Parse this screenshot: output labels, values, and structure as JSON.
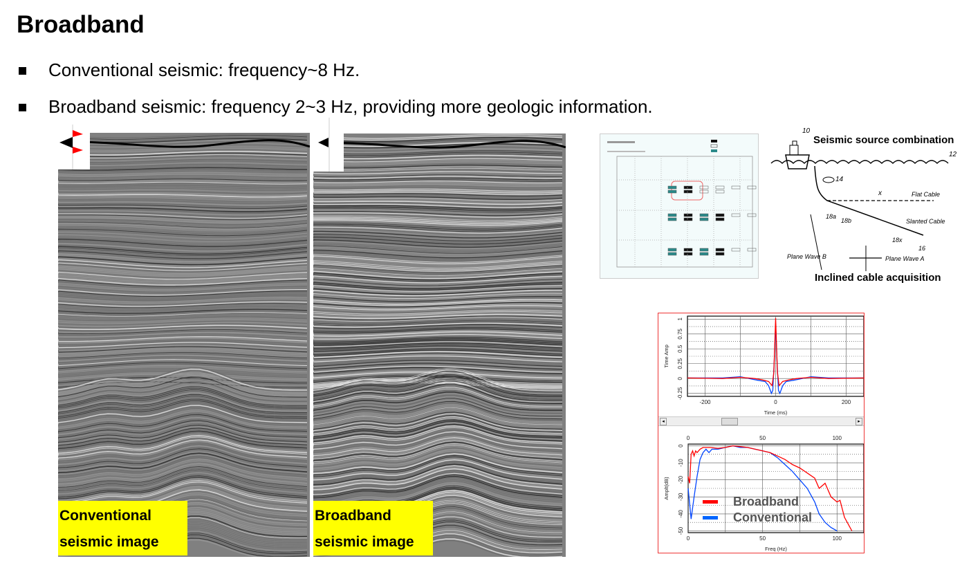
{
  "title": "Broadband",
  "bullets": [
    "Conventional seismic: frequency~8 Hz.",
    "Broadband seismic: frequency 2~3 Hz, providing more geologic information."
  ],
  "images": {
    "conventional_label_1": "Conventional",
    "conventional_label_2": "seismic image",
    "broadband_label_1": "Broadband",
    "broadband_label_2": "seismic image"
  },
  "diagram": {
    "source_caption": "Seismic source combination",
    "cable_caption": "Inclined cable acquisition",
    "labels": [
      "10",
      "12",
      "14",
      "x",
      "Flat Cable",
      "18a",
      "18b",
      "Slanted Cable",
      "18x",
      "16",
      "Plane Wave B",
      "Plane Wave A"
    ]
  },
  "colors": {
    "broadband": "#ff0000",
    "conventional": "#0044ff",
    "label_bg": "#ffff00"
  },
  "chart_data": [
    {
      "type": "line",
      "xlabel": "Time (ms)",
      "ylabel": "Time Amp",
      "xlim": [
        -250,
        250
      ],
      "ylim": [
        -0.3,
        1.05
      ],
      "xticks": [
        "-200",
        "0",
        "200"
      ],
      "yticks": [
        "1",
        "0.75",
        "0.5",
        "0.25",
        "0",
        "-0.25"
      ],
      "grid": true,
      "series": [
        {
          "color": "#ff0000",
          "points": [
            [
              -250,
              0.01
            ],
            [
              -150,
              0.0
            ],
            [
              -100,
              0.02
            ],
            [
              -60,
              0.0
            ],
            [
              -40,
              -0.02
            ],
            [
              -20,
              -0.05
            ],
            [
              -10,
              -0.12
            ],
            [
              -5,
              0.1
            ],
            [
              0,
              1.02
            ],
            [
              5,
              0.1
            ],
            [
              10,
              -0.12
            ],
            [
              20,
              -0.05
            ],
            [
              40,
              -0.02
            ],
            [
              60,
              0.0
            ],
            [
              100,
              0.02
            ],
            [
              150,
              0.0
            ],
            [
              250,
              0.01
            ]
          ]
        },
        {
          "color": "#0044ff",
          "points": [
            [
              -250,
              0.01
            ],
            [
              -150,
              0.01
            ],
            [
              -100,
              0.03
            ],
            [
              -50,
              -0.03
            ],
            [
              -30,
              -0.05
            ],
            [
              -20,
              -0.12
            ],
            [
              -12,
              -0.25
            ],
            [
              -8,
              -0.2
            ],
            [
              -4,
              0.3
            ],
            [
              0,
              0.92
            ],
            [
              4,
              0.3
            ],
            [
              8,
              -0.2
            ],
            [
              12,
              -0.25
            ],
            [
              20,
              -0.12
            ],
            [
              30,
              -0.05
            ],
            [
              50,
              -0.03
            ],
            [
              100,
              0.03
            ],
            [
              150,
              0.01
            ],
            [
              250,
              0.01
            ]
          ]
        }
      ]
    },
    {
      "type": "line",
      "xlabel": "Freq (Hz)",
      "ylabel": "Amplt(dB)",
      "xlim": [
        0,
        118
      ],
      "ylim": [
        -51,
        1
      ],
      "xticks": [
        "0",
        "50",
        "100"
      ],
      "yticks": [
        "0",
        "-10",
        "-20",
        "-30",
        "-40",
        "-50"
      ],
      "grid": true,
      "legend": "bottom-left",
      "series": [
        {
          "name": "Broadband",
          "color": "#ff0000",
          "points": [
            [
              0,
              -18
            ],
            [
              1,
              -22
            ],
            [
              2,
              -5
            ],
            [
              3,
              -3
            ],
            [
              4,
              -6
            ],
            [
              5,
              -3
            ],
            [
              6,
              -4
            ],
            [
              8,
              -2
            ],
            [
              10,
              -1
            ],
            [
              15,
              -1
            ],
            [
              20,
              -1.5
            ],
            [
              25,
              -1
            ],
            [
              30,
              0
            ],
            [
              35,
              -0.5
            ],
            [
              40,
              -1
            ],
            [
              45,
              -2
            ],
            [
              50,
              -3
            ],
            [
              55,
              -4
            ],
            [
              60,
              -6
            ],
            [
              65,
              -8
            ],
            [
              70,
              -11
            ],
            [
              75,
              -13
            ],
            [
              80,
              -16
            ],
            [
              85,
              -19
            ],
            [
              88,
              -25
            ],
            [
              92,
              -22
            ],
            [
              96,
              -30
            ],
            [
              100,
              -33
            ],
            [
              102,
              -32
            ],
            [
              105,
              -42
            ],
            [
              110,
              -50
            ]
          ]
        },
        {
          "name": "Conventional",
          "color": "#0044ff",
          "points": [
            [
              0,
              -25
            ],
            [
              2,
              -43
            ],
            [
              4,
              -30
            ],
            [
              6,
              -18
            ],
            [
              8,
              -8
            ],
            [
              10,
              -4
            ],
            [
              12,
              -2
            ],
            [
              14,
              -4
            ],
            [
              16,
              -2
            ],
            [
              20,
              -2
            ],
            [
              25,
              -1
            ],
            [
              30,
              0
            ],
            [
              35,
              -1
            ],
            [
              40,
              -1
            ],
            [
              45,
              -2
            ],
            [
              50,
              -3
            ],
            [
              55,
              -4
            ],
            [
              60,
              -7
            ],
            [
              65,
              -11
            ],
            [
              70,
              -15
            ],
            [
              75,
              -20
            ],
            [
              80,
              -25
            ],
            [
              85,
              -33
            ],
            [
              88,
              -40
            ],
            [
              92,
              -45
            ],
            [
              96,
              -48
            ],
            [
              100,
              -50
            ]
          ]
        }
      ]
    }
  ]
}
